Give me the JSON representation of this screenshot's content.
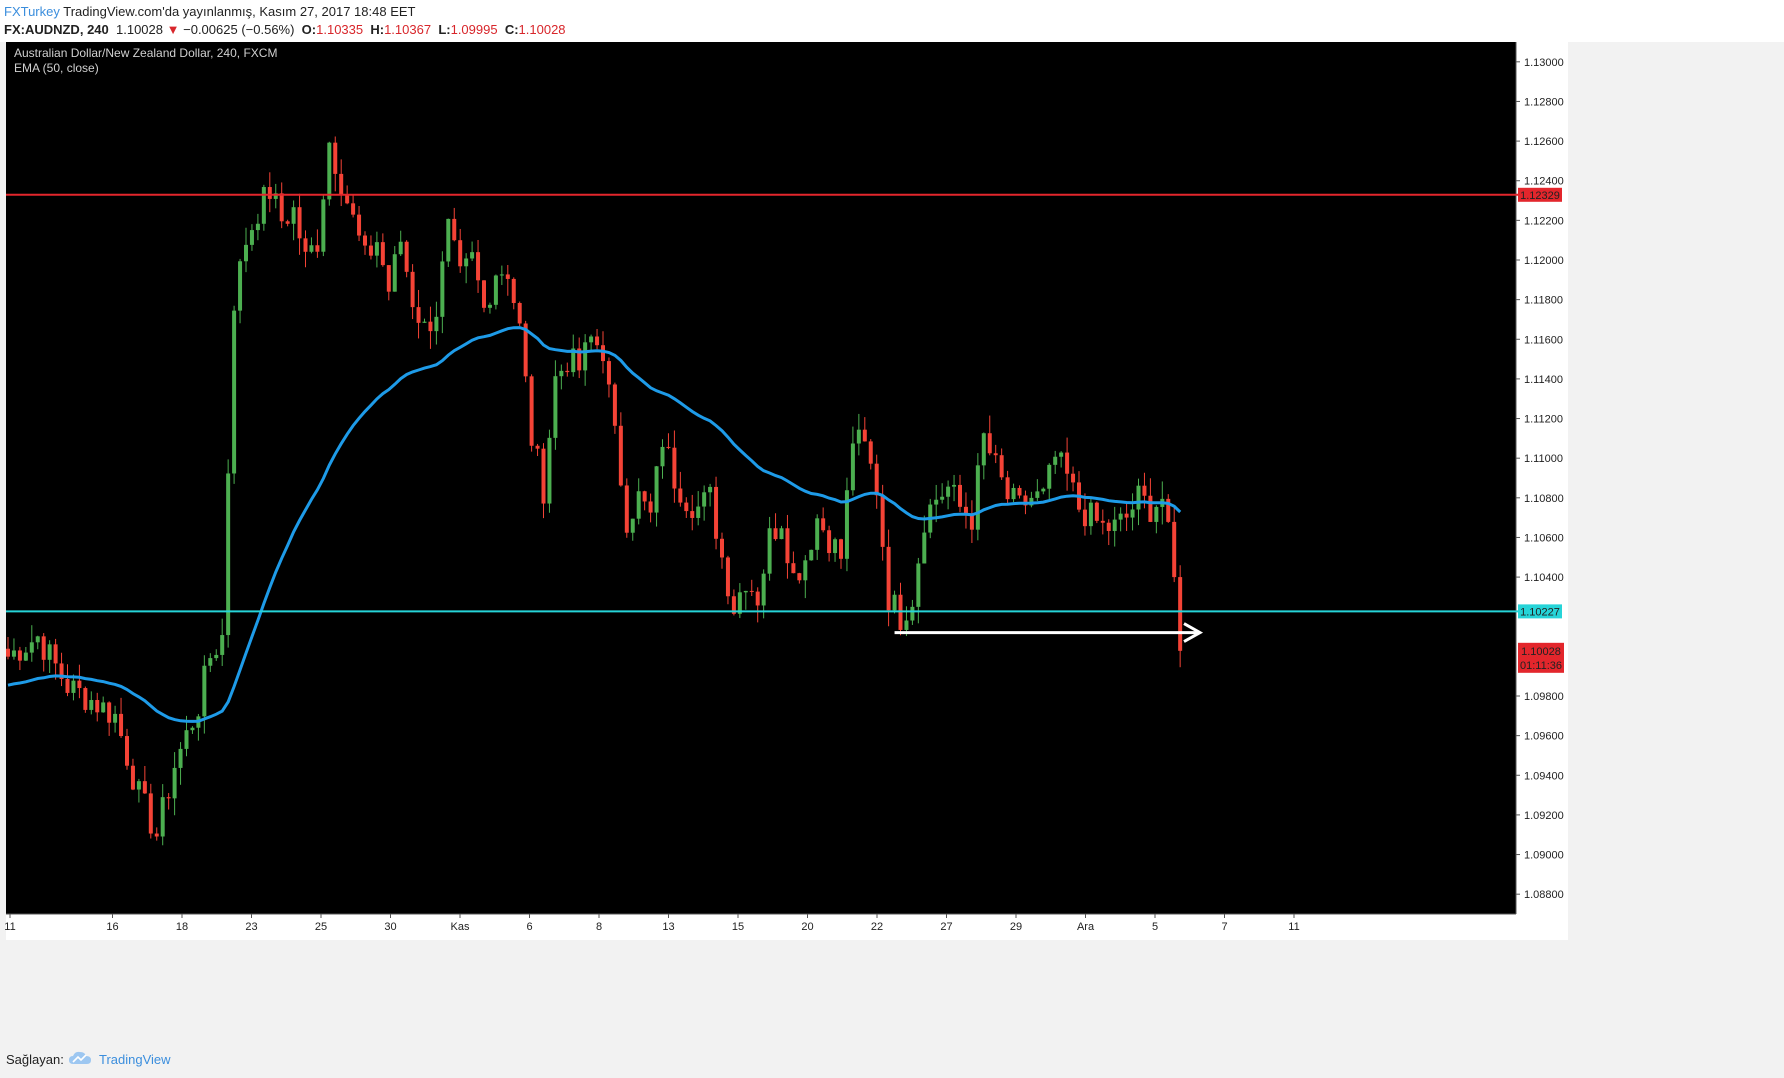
{
  "header": {
    "brand": "FXTurkey",
    "published": "TradingView.com'da yayınlanmış, Kasım 27, 2017 18:48 EET",
    "symbol": "FX:AUDNZD",
    "interval": "240",
    "last": "1.10028",
    "change": "−0.00625 (−0.56%)",
    "o_label": "O:",
    "o": "1.10335",
    "h_label": "H:",
    "h": "1.10367",
    "l_label": "L:",
    "l": "1.09995",
    "c_label": "C:",
    "c": "1.10028"
  },
  "footer": {
    "label": "Sağlayan:",
    "brand": "TradingView"
  },
  "chart_data": {
    "type": "candlestick",
    "title": "Australian Dollar/New Zealand Dollar, 240, FXCM",
    "indicator": "EMA (50, close)",
    "ylim": [
      1.087,
      1.131
    ],
    "y_ticks": [
      "1.13000",
      "1.12800",
      "1.12600",
      "1.12400",
      "1.12200",
      "1.12000",
      "1.11800",
      "1.11600",
      "1.11400",
      "1.11200",
      "1.11000",
      "1.10800",
      "1.10600",
      "1.10400",
      "1.09800",
      "1.09600",
      "1.09400",
      "1.09200",
      "1.09000",
      "1.08800"
    ],
    "x_ticks": [
      "11",
      "16",
      "18",
      "23",
      "25",
      "30",
      "Kas",
      "6",
      "8",
      "13",
      "15",
      "20",
      "22",
      "27",
      "29",
      "Ara",
      "5",
      "7",
      "11"
    ],
    "horizontal_lines": [
      {
        "price": 1.12329,
        "label": "1.12329",
        "color": "#e3262c"
      },
      {
        "price": 1.10227,
        "label": "1.10227",
        "color": "#26d4d8"
      }
    ],
    "last_price": {
      "label": "1.10028",
      "countdown": "01:11:36",
      "color": "#e3262c"
    },
    "arrow": {
      "price": 1.1012,
      "color": "#ffffff"
    },
    "ema_color": "#1e9be8",
    "up_color": "#4caf50",
    "down_color": "#f44336",
    "background": "#000000",
    "close_path": [
      [
        0,
        1.1
      ],
      [
        5,
        1.101
      ],
      [
        10,
        1.0985
      ],
      [
        14,
        1.0978
      ],
      [
        18,
        1.097
      ],
      [
        22,
        1.093
      ],
      [
        25,
        1.091
      ],
      [
        28,
        1.0945
      ],
      [
        32,
        1.0975
      ],
      [
        34,
        1.1
      ],
      [
        36,
        1.101
      ],
      [
        38,
        1.118
      ],
      [
        40,
        1.121
      ],
      [
        42,
        1.1225
      ],
      [
        44,
        1.1235
      ],
      [
        46,
        1.122
      ],
      [
        48,
        1.1225
      ],
      [
        50,
        1.12
      ],
      [
        52,
        1.121
      ],
      [
        54,
        1.126
      ],
      [
        56,
        1.124
      ],
      [
        58,
        1.122
      ],
      [
        60,
        1.12
      ],
      [
        62,
        1.121
      ],
      [
        64,
        1.1185
      ],
      [
        66,
        1.121
      ],
      [
        68,
        1.118
      ],
      [
        70,
        1.1165
      ],
      [
        72,
        1.1175
      ],
      [
        74,
        1.1215
      ],
      [
        76,
        1.119
      ],
      [
        78,
        1.12
      ],
      [
        80,
        1.1175
      ],
      [
        82,
        1.1195
      ],
      [
        84,
        1.1195
      ],
      [
        86,
        1.1165
      ],
      [
        88,
        1.111
      ],
      [
        90,
        1.1085
      ],
      [
        92,
        1.114
      ],
      [
        94,
        1.115
      ],
      [
        96,
        1.1145
      ],
      [
        98,
        1.116
      ],
      [
        100,
        1.1155
      ],
      [
        102,
        1.111
      ],
      [
        104,
        1.107
      ],
      [
        106,
        1.108
      ],
      [
        108,
        1.107
      ],
      [
        110,
        1.111
      ],
      [
        112,
        1.109
      ],
      [
        114,
        1.108
      ],
      [
        116,
        1.1075
      ],
      [
        118,
        1.108
      ],
      [
        120,
        1.105
      ],
      [
        122,
        1.1025
      ],
      [
        124,
        1.104
      ],
      [
        126,
        1.103
      ],
      [
        128,
        1.106
      ],
      [
        130,
        1.107
      ],
      [
        132,
        1.104
      ],
      [
        134,
        1.105
      ],
      [
        136,
        1.107
      ],
      [
        138,
        1.106
      ],
      [
        140,
        1.105
      ],
      [
        142,
        1.111
      ],
      [
        144,
        1.1105
      ],
      [
        146,
        1.1085
      ],
      [
        148,
        1.103
      ],
      [
        150,
        1.102
      ],
      [
        152,
        1.103
      ],
      [
        154,
        1.107
      ],
      [
        156,
        1.108
      ],
      [
        158,
        1.1085
      ],
      [
        160,
        1.1075
      ],
      [
        162,
        1.107
      ],
      [
        164,
        1.111
      ],
      [
        166,
        1.1095
      ],
      [
        168,
        1.108
      ],
      [
        170,
        1.1075
      ],
      [
        172,
        1.108
      ],
      [
        174,
        1.108
      ],
      [
        176,
        1.11
      ],
      [
        178,
        1.109
      ],
      [
        180,
        1.1075
      ],
      [
        182,
        1.107
      ],
      [
        184,
        1.1065
      ],
      [
        186,
        1.1065
      ],
      [
        188,
        1.107
      ],
      [
        190,
        1.108
      ],
      [
        192,
        1.1075
      ],
      [
        194,
        1.108
      ],
      [
        196,
        1.104
      ],
      [
        197,
        1.1003
      ]
    ]
  }
}
